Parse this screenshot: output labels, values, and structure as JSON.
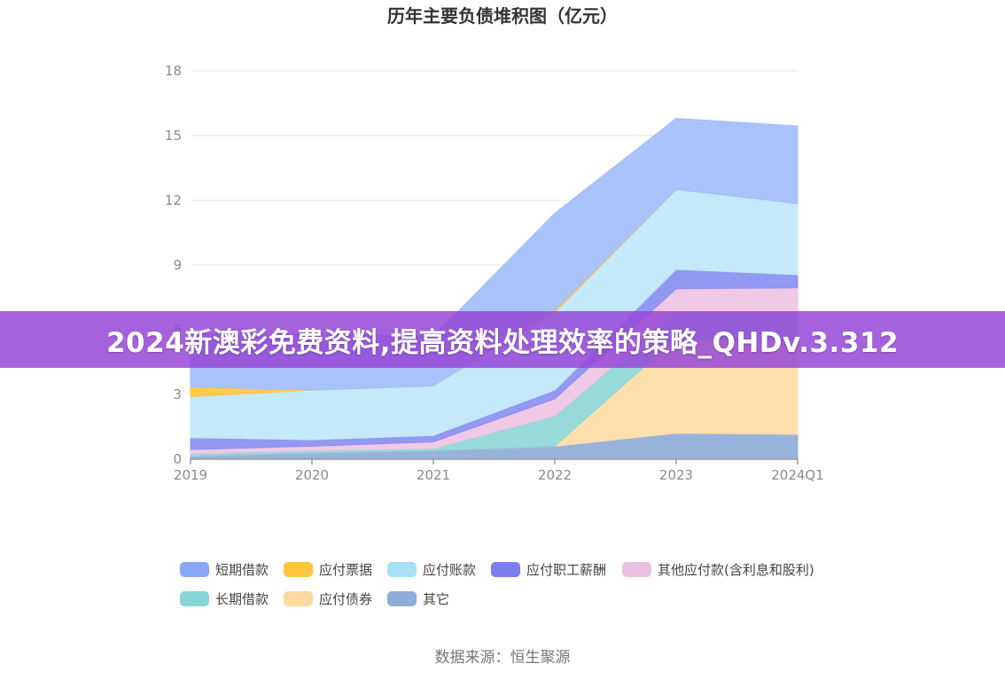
{
  "chart_data": {
    "type": "area",
    "stacked": true,
    "title": "历年主要负债堆积图（亿元）",
    "categories": [
      "2019",
      "2020",
      "2021",
      "2022",
      "2023",
      "2024Q1"
    ],
    "yticks": [
      "0",
      "3",
      "6",
      "9",
      "12",
      "15",
      "18"
    ],
    "ylim": [
      0,
      18
    ],
    "grid": true,
    "legend_position": "bottom",
    "series": [
      {
        "name": "其它",
        "color": "#8fadd8",
        "values": [
          0.15,
          0.3,
          0.4,
          0.6,
          1.2,
          1.15
        ]
      },
      {
        "name": "应付债券",
        "color": "#fddda6",
        "values": [
          0,
          0,
          0,
          0,
          4.4,
          4.3
        ]
      },
      {
        "name": "长期借款",
        "color": "#8fd6d6",
        "values": [
          0.1,
          0.1,
          0.1,
          1.4,
          1.2,
          1.3
        ]
      },
      {
        "name": "其他应付款(含利息和股利)",
        "color": "#eec4e3",
        "values": [
          0.2,
          0.2,
          0.3,
          0.8,
          1.1,
          1.2
        ]
      },
      {
        "name": "应付职工薪酬",
        "color": "#8a8ff0",
        "values": [
          0.55,
          0.3,
          0.3,
          0.4,
          0.9,
          0.6
        ]
      },
      {
        "name": "应付账款",
        "color": "#bfe7fa",
        "values": [
          1.9,
          2.3,
          2.3,
          3.6,
          3.7,
          3.3
        ]
      },
      {
        "name": "应付票据",
        "color": "#ffc63e",
        "values": [
          0.45,
          0,
          0,
          0.1,
          0,
          0
        ]
      },
      {
        "name": "短期借款",
        "color": "#a3bdfa",
        "values": [
          2.45,
          2.6,
          2.3,
          4.5,
          3.3,
          3.6
        ]
      }
    ],
    "legend_order": [
      "短期借款",
      "应付票据",
      "应付账款",
      "应付职工薪酬",
      "其他应付款(含利息和股利)",
      "长期借款",
      "应付债券",
      "其它"
    ],
    "legend_colors": {
      "短期借款": "#8aa7f7",
      "应付票据": "#ffc63e",
      "应付账款": "#a9e0f8",
      "应付职工薪酬": "#7b7ef0",
      "其他应付款(含利息和股利)": "#ebbfe0",
      "长期借款": "#86d5d5",
      "应付债券": "#fdd9a0",
      "其它": "#90acd8"
    }
  },
  "source_label": "数据来源：恒生聚源",
  "banner": {
    "text": "2024新澳彩免费资料,提高资料处理效率的策略_QHDv.3.312"
  }
}
